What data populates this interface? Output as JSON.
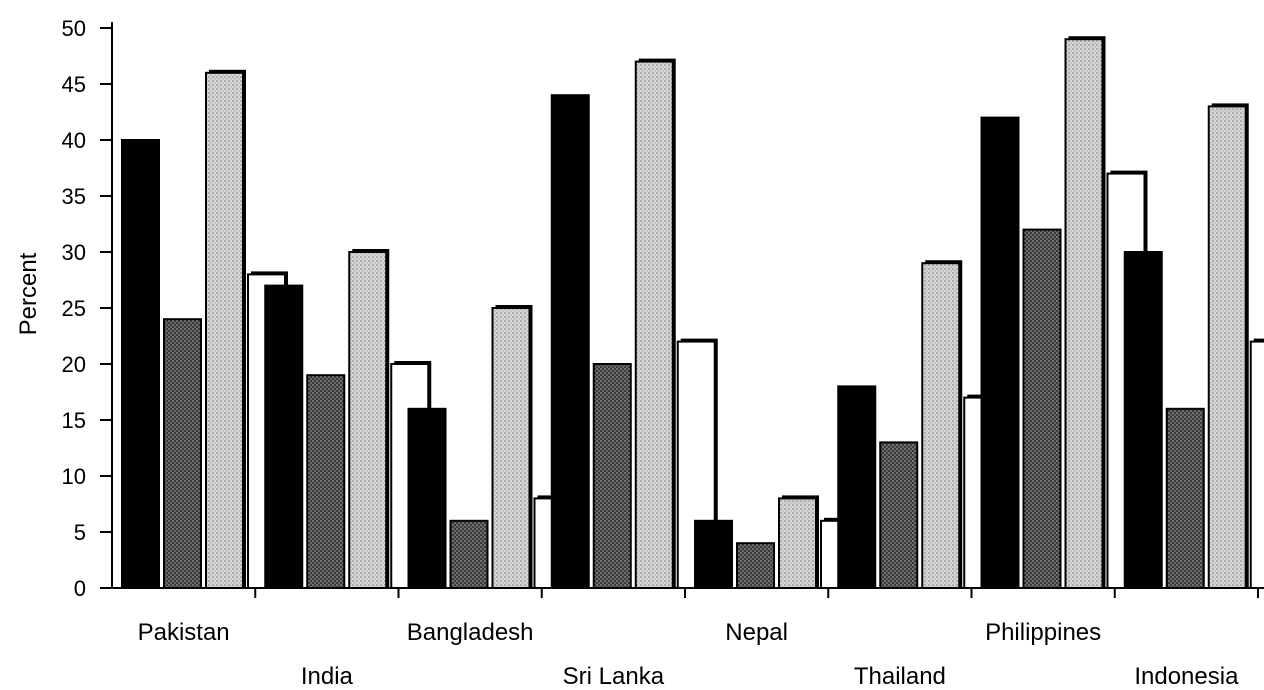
{
  "chart_data": {
    "type": "bar",
    "ylabel": "Percent",
    "xlabel": "",
    "ylim": [
      0,
      50
    ],
    "yticks": [
      0,
      5,
      10,
      15,
      20,
      25,
      30,
      35,
      40,
      45,
      50
    ],
    "categories": [
      "Pakistan",
      "India",
      "Bangladesh",
      "Sri Lanka",
      "Nepal",
      "Thailand",
      "Philippines",
      "Indonesia"
    ],
    "series": [
      {
        "values": [
          40,
          27,
          16,
          44,
          6,
          18,
          42,
          30
        ],
        "color": "#000000",
        "pattern": "solid"
      },
      {
        "values": [
          24,
          19,
          6,
          20,
          4,
          13,
          32,
          16
        ],
        "color": "#555555",
        "pattern": "dark-dots"
      },
      {
        "values": [
          46,
          30,
          25,
          47,
          8,
          29,
          49,
          43
        ],
        "color": "#bbbbbb",
        "pattern": "light-dots"
      },
      {
        "values": [
          28,
          20,
          8,
          22,
          6,
          17,
          37,
          22
        ],
        "color": "#ffffff",
        "pattern": "white"
      }
    ],
    "grid": false,
    "legend": "none"
  }
}
